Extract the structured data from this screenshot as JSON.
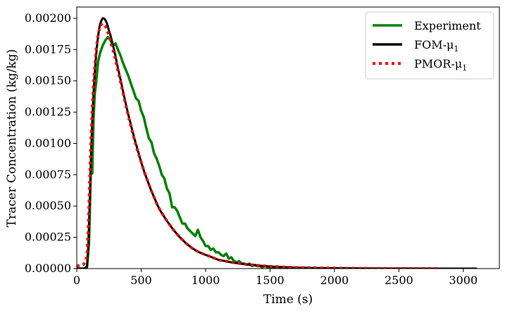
{
  "chart_data": {
    "type": "line",
    "xlabel": "Time (s)",
    "ylabel": "Tracer Concentration (kg/kg)",
    "xlim": [
      0,
      3280
    ],
    "ylim": [
      0,
      0.00209
    ],
    "xticks": [
      0,
      500,
      1000,
      1500,
      2000,
      2500,
      3000
    ],
    "xtick_labels": [
      "0",
      "500",
      "1000",
      "1500",
      "2000",
      "2500",
      "3000"
    ],
    "yticks": [
      0,
      0.00025,
      0.0005,
      0.00075,
      0.001,
      0.00125,
      0.0015,
      0.00175,
      0.002
    ],
    "ytick_labels": [
      "0.00000",
      "0.00025",
      "0.00050",
      "0.00075",
      "0.00100",
      "0.00125",
      "0.00150",
      "0.00175",
      "0.00200"
    ],
    "grid": false,
    "legend_position": "top-right",
    "legend": [
      {
        "name": "Experiment",
        "base": "Experiment",
        "sub": ""
      },
      {
        "name": "FOM-μ1",
        "base": "FOM-μ",
        "sub": "1"
      },
      {
        "name": "PMOR-μ1",
        "base": "PMOR-μ",
        "sub": "1"
      }
    ],
    "series": [
      {
        "name": "Experiment",
        "color": "#008000",
        "style": "solid",
        "x": [
          0,
          60,
          80,
          95,
          100,
          105,
          110,
          120,
          130,
          140,
          150,
          165,
          180,
          200,
          220,
          240,
          260,
          280,
          300,
          320,
          340,
          360,
          380,
          400,
          420,
          440,
          460,
          480,
          500,
          520,
          540,
          560,
          580,
          600,
          620,
          640,
          660,
          680,
          700,
          720,
          740,
          760,
          780,
          800,
          820,
          840,
          860,
          880,
          900,
          920,
          940,
          960,
          980,
          1000,
          1020,
          1040,
          1060,
          1080,
          1100,
          1120,
          1140,
          1160,
          1180,
          1200,
          1220,
          1240,
          1260,
          1280,
          1300,
          1320,
          1340,
          1360,
          1380,
          1400,
          1420,
          1440,
          1460,
          1480,
          1500,
          1520,
          1540,
          1560,
          1580,
          1600,
          1620,
          1640,
          1660
        ],
        "y": [
          0,
          0,
          2e-05,
          0.0002,
          0.0004,
          0.00062,
          0.0008,
          0.00076,
          0.0012,
          0.0014,
          0.00148,
          0.00165,
          0.00172,
          0.00178,
          0.00182,
          0.00185,
          0.00183,
          0.00178,
          0.0018,
          0.00175,
          0.0017,
          0.00164,
          0.00159,
          0.00154,
          0.00148,
          0.00142,
          0.00136,
          0.00134,
          0.00126,
          0.00121,
          0.00112,
          0.00104,
          0.00101,
          0.00092,
          0.00088,
          0.00082,
          0.00075,
          0.00072,
          0.00064,
          0.0006,
          0.00049,
          0.00049,
          0.00046,
          0.00041,
          0.00036,
          0.00036,
          0.00032,
          0.0003,
          0.00028,
          0.00026,
          0.00031,
          0.00025,
          0.00022,
          0.00018,
          0.00018,
          0.00015,
          0.00016,
          0.00013,
          0.00013,
          0.00011,
          0.0001,
          0.00012,
          8e-05,
          9e-05,
          6e-05,
          5e-05,
          6e-05,
          4e-05,
          4e-05,
          3e-05,
          4e-05,
          2e-05,
          3e-05,
          2e-05,
          2e-05,
          1e-05,
          2e-05,
          1e-05,
          1e-05,
          1e-05,
          0,
          1e-05,
          0,
          0,
          0,
          0,
          0
        ]
      },
      {
        "name": "FOM-μ1",
        "color": "#000000",
        "style": "solid",
        "x": [
          0,
          50,
          70,
          80,
          90,
          100,
          110,
          120,
          130,
          140,
          150,
          160,
          170,
          180,
          190,
          200,
          210,
          220,
          230,
          240,
          250,
          260,
          280,
          300,
          320,
          340,
          360,
          380,
          400,
          425,
          450,
          475,
          500,
          525,
          550,
          575,
          600,
          625,
          650,
          675,
          700,
          750,
          800,
          850,
          900,
          950,
          1000,
          1050,
          1100,
          1150,
          1200,
          1300,
          1400,
          1500,
          1600,
          1700,
          1800,
          1900,
          2000,
          2200,
          2400,
          2600,
          2800,
          3000,
          3100
        ],
        "y": [
          0,
          0,
          0,
          1e-05,
          0.0002,
          0.00052,
          0.00088,
          0.00118,
          0.0014,
          0.00157,
          0.0017,
          0.00181,
          0.00189,
          0.00195,
          0.00198,
          0.002,
          0.002,
          0.00199,
          0.00197,
          0.00194,
          0.0019,
          0.00187,
          0.00179,
          0.0017,
          0.0016,
          0.00151,
          0.00141,
          0.00132,
          0.00123,
          0.00113,
          0.00103,
          0.00094,
          0.00085,
          0.00077,
          0.0007,
          0.00063,
          0.00057,
          0.00051,
          0.00046,
          0.00042,
          0.00038,
          0.00031,
          0.00025,
          0.0002,
          0.00016,
          0.00013,
          0.00011,
          9e-05,
          7e-05,
          6e-05,
          5e-05,
          3.5e-05,
          2.5e-05,
          1.7e-05,
          1.2e-05,
          8e-06,
          6e-06,
          4e-06,
          3e-06,
          1.5e-06,
          8e-07,
          4e-07,
          2e-07,
          1e-07,
          0
        ]
      },
      {
        "name": "PMOR-μ1",
        "color": "#ff0000",
        "style": "dotted",
        "x": [
          0,
          50,
          70,
          80,
          90,
          100,
          110,
          120,
          130,
          140,
          150,
          160,
          170,
          180,
          190,
          200,
          210,
          220,
          230,
          240,
          250,
          260,
          280,
          300,
          320,
          340,
          360,
          380,
          400,
          425,
          450,
          475,
          500,
          525,
          550,
          575,
          600,
          625,
          650,
          675,
          700,
          750,
          800,
          850,
          900,
          950,
          1000,
          1050,
          1100,
          1150,
          1200,
          1300,
          1400,
          1500,
          1600,
          1700,
          1800,
          1900,
          2000,
          2200,
          2400,
          2600,
          2800
        ],
        "y": [
          2e-05,
          3e-05,
          6e-05,
          0.00012,
          0.00035,
          0.0007,
          0.00102,
          0.00128,
          0.00148,
          0.00162,
          0.00174,
          0.00183,
          0.00189,
          0.00193,
          0.00195,
          0.00196,
          0.00195,
          0.00194,
          0.00192,
          0.00189,
          0.00186,
          0.00182,
          0.00175,
          0.00167,
          0.00158,
          0.00149,
          0.0014,
          0.00131,
          0.00122,
          0.00112,
          0.00102,
          0.00093,
          0.00085,
          0.00077,
          0.0007,
          0.00063,
          0.00057,
          0.00051,
          0.00046,
          0.00042,
          0.00038,
          0.00031,
          0.00025,
          0.0002,
          0.00016,
          0.00013,
          0.00011,
          9e-05,
          7e-05,
          6e-05,
          5e-05,
          3.6e-05,
          2.6e-05,
          1.8e-05,
          1.3e-05,
          9e-06,
          7e-06,
          5e-06,
          4e-06,
          2e-06,
          1e-06,
          5e-07,
          3e-07
        ]
      }
    ]
  }
}
